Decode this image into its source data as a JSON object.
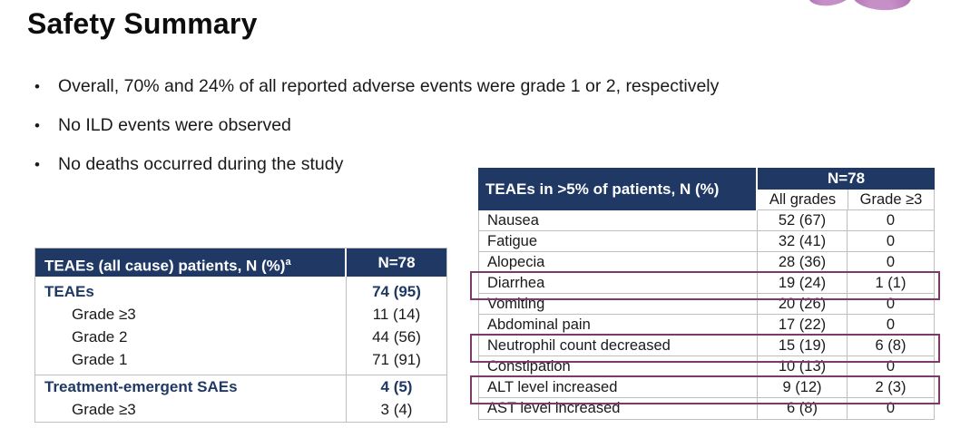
{
  "slide": {
    "title": "Safety Summary",
    "bullets": [
      "Overall, 70% and 24% of all reported adverse events were grade 1 or 2, respectively",
      "No ILD events were observed",
      "No deaths occurred during the study"
    ],
    "bullet_glyph": "•"
  },
  "decoration": {
    "description": "purple petal logo fragment at top edge",
    "petal_color": "#b77ab8"
  },
  "left_table": {
    "header_label": "TEAEs (all cause) patients, N (%)",
    "header_superscript": "a",
    "header_n": "N=78",
    "groups": [
      {
        "rows": [
          {
            "label": "TEAEs",
            "value": "74 (95)",
            "emphasis": true,
            "indent": false
          },
          {
            "label": "Grade ≥3",
            "value": "11 (14)",
            "emphasis": false,
            "indent": true
          },
          {
            "label": "Grade 2",
            "value": "44 (56)",
            "emphasis": false,
            "indent": true
          },
          {
            "label": "Grade 1",
            "value": "71 (91)",
            "emphasis": false,
            "indent": true
          }
        ]
      },
      {
        "rows": [
          {
            "label": "Treatment-emergent SAEs",
            "value": "4 (5)",
            "emphasis": true,
            "indent": false
          },
          {
            "label": "Grade ≥3",
            "value": "3 (4)",
            "emphasis": false,
            "indent": true
          }
        ]
      }
    ]
  },
  "right_table": {
    "header_label": "TEAEs in >5% of patients, N (%)",
    "header_n": "N=78",
    "col_all_grades": "All grades",
    "col_grade_ge3": "Grade ≥3",
    "rows": [
      {
        "label": "Nausea",
        "all_grades": "52 (67)",
        "grade_ge3": "0",
        "highlight": false
      },
      {
        "label": "Fatigue",
        "all_grades": "32 (41)",
        "grade_ge3": "0",
        "highlight": false
      },
      {
        "label": "Alopecia",
        "all_grades": "28 (36)",
        "grade_ge3": "0",
        "highlight": false
      },
      {
        "label": "Diarrhea",
        "all_grades": "19 (24)",
        "grade_ge3": "1 (1)",
        "highlight": true
      },
      {
        "label": "Vomiting",
        "all_grades": "20 (26)",
        "grade_ge3": "0",
        "highlight": false
      },
      {
        "label": "Abdominal pain",
        "all_grades": "17 (22)",
        "grade_ge3": "0",
        "highlight": false
      },
      {
        "label": "Neutrophil count decreased",
        "all_grades": "15 (19)",
        "grade_ge3": "6 (8)",
        "highlight": true
      },
      {
        "label": "Constipation",
        "all_grades": "10 (13)",
        "grade_ge3": "0",
        "highlight": false
      },
      {
        "label": "ALT level increased",
        "all_grades": "9 (12)",
        "grade_ge3": "2 (3)",
        "highlight": true
      },
      {
        "label": "AST level increased",
        "all_grades": "6 (8)",
        "grade_ge3": "0",
        "highlight": false
      }
    ]
  },
  "colors": {
    "header_navy": "#1f3864",
    "emphasis_navy": "#1f3864",
    "highlight_border": "#7d3a68",
    "table_border": "#bfbfbf",
    "petal": "#b77ab8"
  }
}
